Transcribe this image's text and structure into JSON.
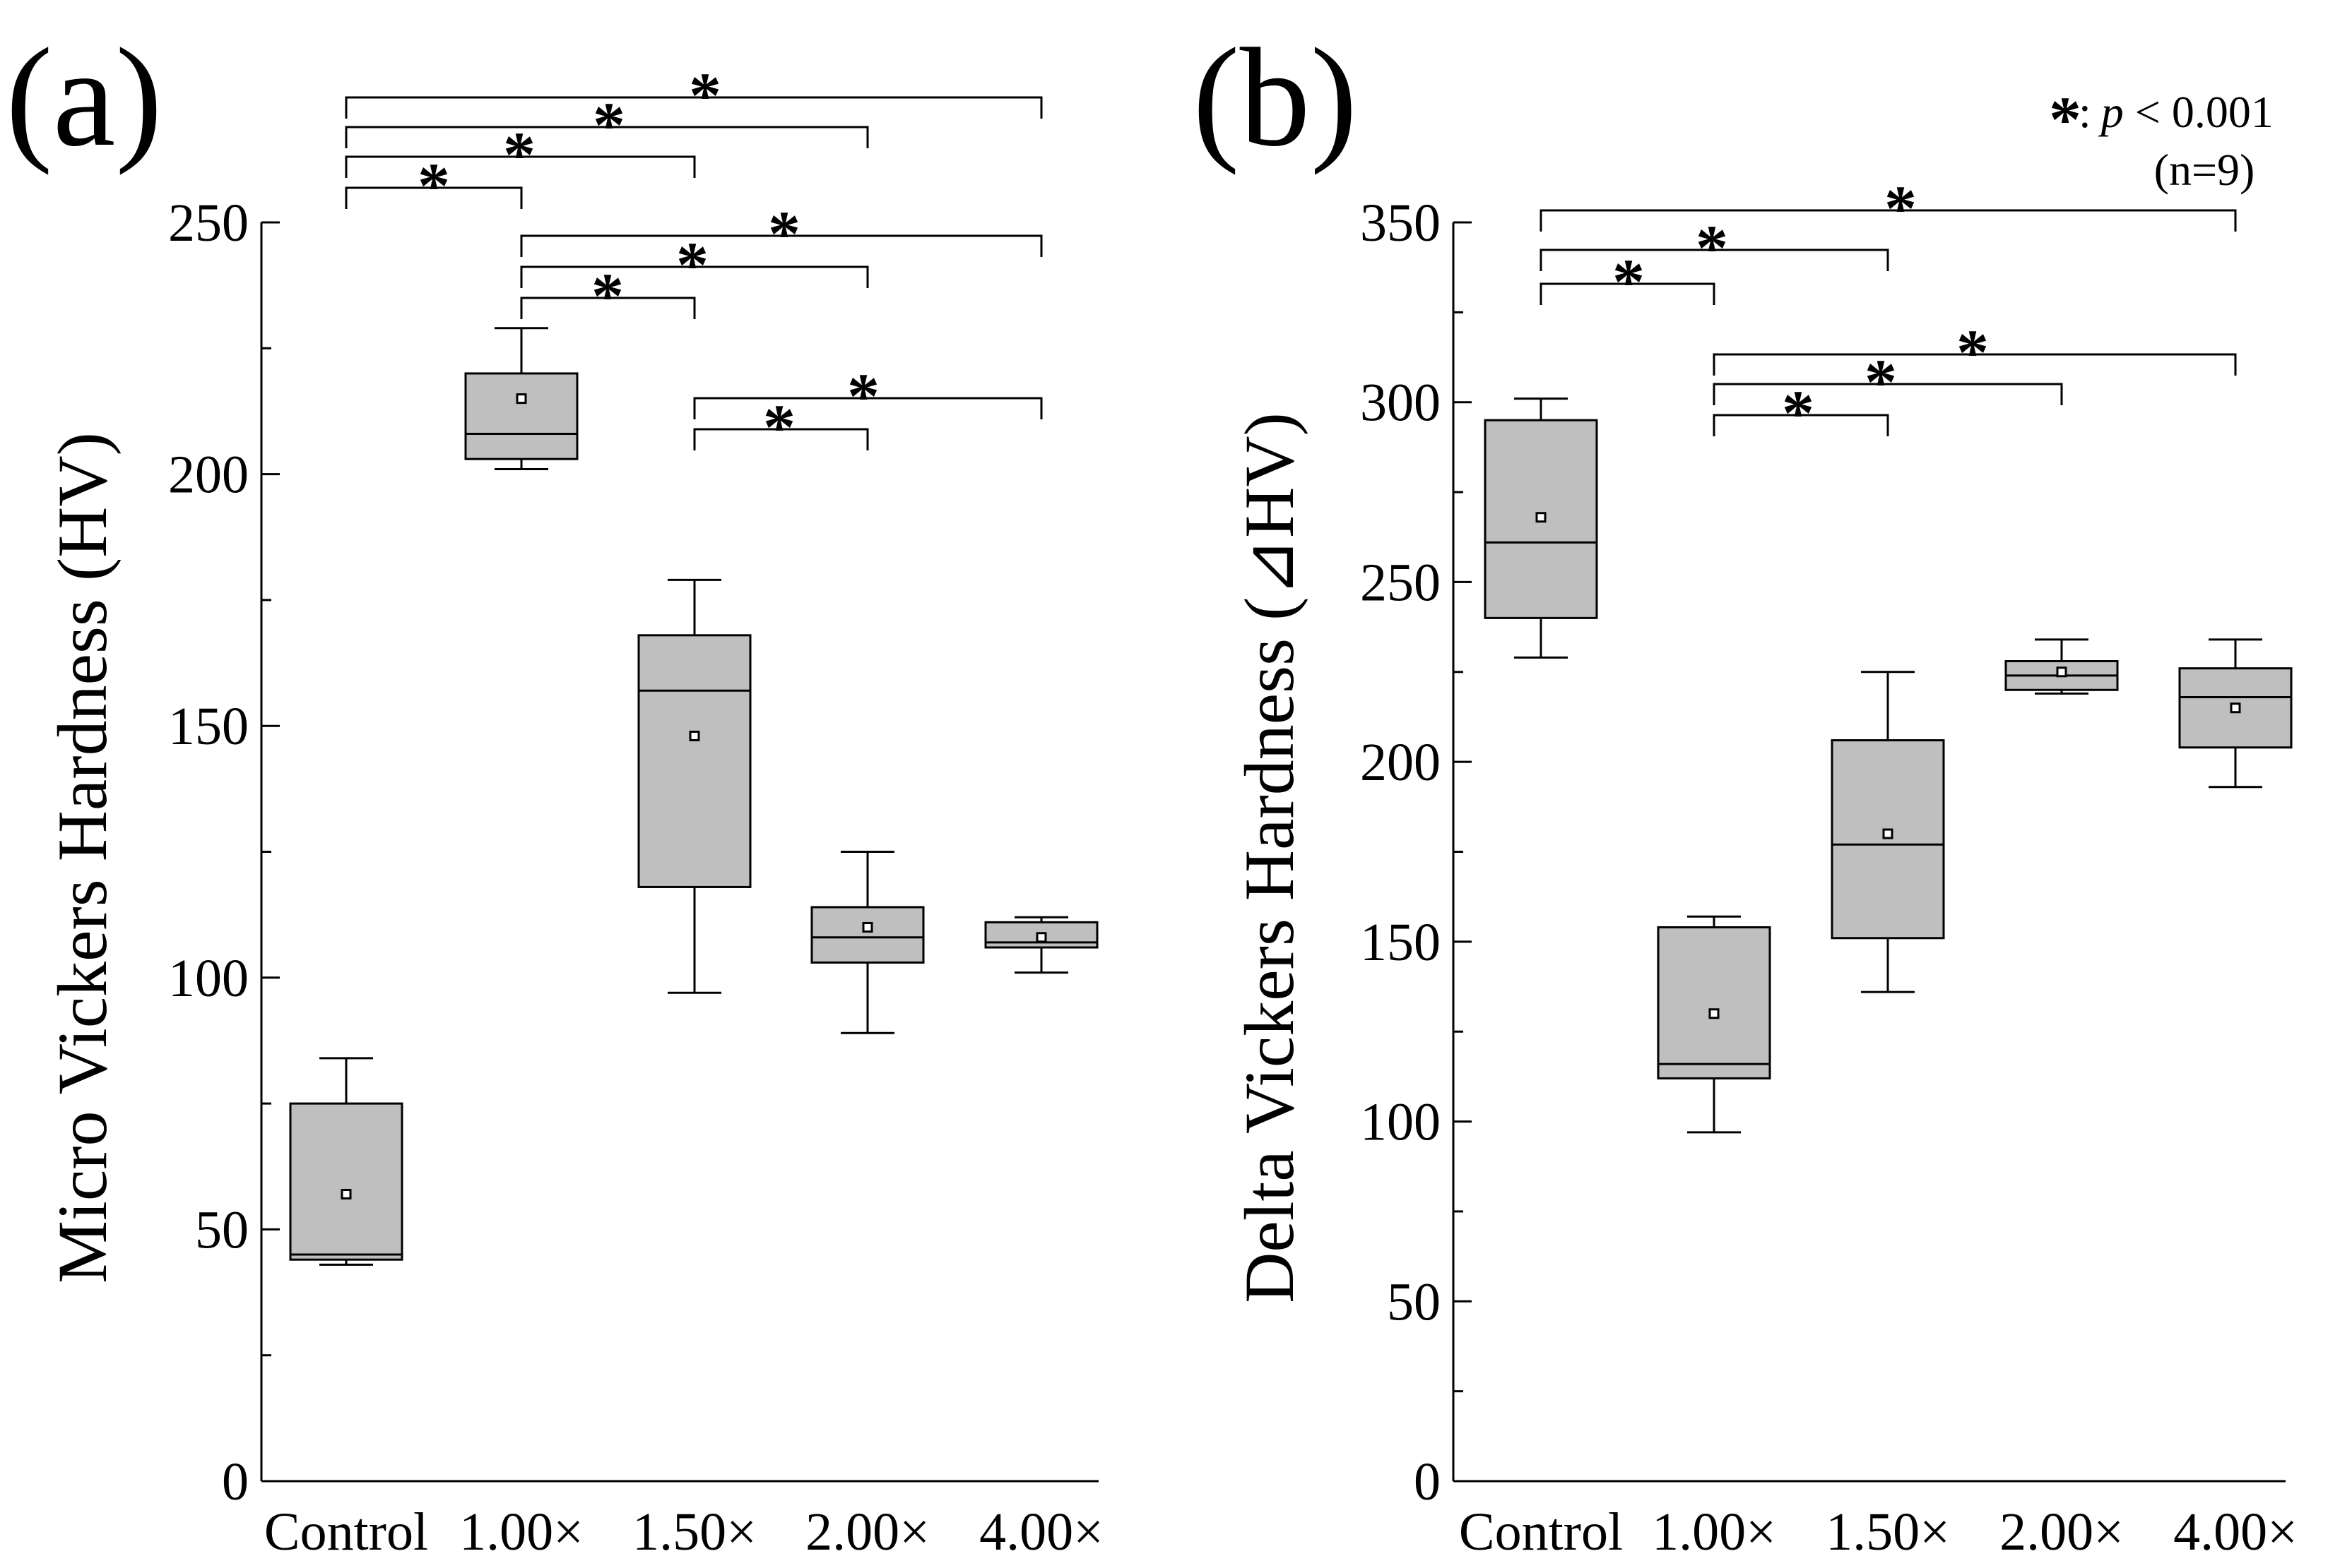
{
  "legend": {
    "star": "*",
    "p_prefix": ":",
    "p_italic": "p",
    "p_rest": " < 0.001",
    "n_text": "(n=9)"
  },
  "colors": {
    "box_fill": "#bfbfbf",
    "line": "#000000"
  },
  "chart_data": [
    {
      "type": "box",
      "panel_label": "(a)",
      "ylabel": "Micro Vickers Hardness (HV)",
      "ylim": [
        0,
        250
      ],
      "yticks": [
        0,
        50,
        100,
        150,
        200,
        250
      ],
      "categories": [
        "Control",
        "1.00×",
        "1.50×",
        "2.00×",
        "4.00×"
      ],
      "boxes": [
        {
          "whisker_low": 43,
          "q1": 44,
          "median": 45,
          "q3": 75,
          "whisker_high": 84,
          "mean": 57
        },
        {
          "whisker_low": 201,
          "q1": 203,
          "median": 208,
          "q3": 220,
          "whisker_high": 229,
          "mean": 215
        },
        {
          "whisker_low": 97,
          "q1": 118,
          "median": 157,
          "q3": 168,
          "whisker_high": 179,
          "mean": 148
        },
        {
          "whisker_low": 89,
          "q1": 103,
          "median": 108,
          "q3": 114,
          "whisker_high": 125,
          "mean": 110
        },
        {
          "whisker_low": 101,
          "q1": 106,
          "median": 107,
          "q3": 111,
          "whisker_high": 112,
          "mean": 108
        }
      ],
      "significance": [
        {
          "from": 0,
          "to": 4,
          "label": "*"
        },
        {
          "from": 0,
          "to": 3,
          "label": "*"
        },
        {
          "from": 0,
          "to": 2,
          "label": "*"
        },
        {
          "from": 0,
          "to": 1,
          "label": "*"
        },
        {
          "from": 1,
          "to": 4,
          "label": "*"
        },
        {
          "from": 1,
          "to": 3,
          "label": "*"
        },
        {
          "from": 1,
          "to": 2,
          "label": "*"
        },
        {
          "from": 2,
          "to": 4,
          "label": "*"
        },
        {
          "from": 2,
          "to": 3,
          "label": "*"
        }
      ]
    },
    {
      "type": "box",
      "panel_label": "(b)",
      "ylabel": "Delta Vickers Hardness (⊿HV)",
      "ylim": [
        0,
        350
      ],
      "yticks": [
        0,
        50,
        100,
        150,
        200,
        250,
        300,
        350
      ],
      "categories": [
        "Control",
        "1.00×",
        "1.50×",
        "2.00×",
        "4.00×"
      ],
      "boxes": [
        {
          "whisker_low": 229,
          "q1": 240,
          "median": 261,
          "q3": 295,
          "whisker_high": 301,
          "mean": 268
        },
        {
          "whisker_low": 97,
          "q1": 112,
          "median": 116,
          "q3": 154,
          "whisker_high": 157,
          "mean": 130
        },
        {
          "whisker_low": 136,
          "q1": 151,
          "median": 177,
          "q3": 206,
          "whisker_high": 225,
          "mean": 180
        },
        {
          "whisker_low": 219,
          "q1": 220,
          "median": 224,
          "q3": 228,
          "whisker_high": 234,
          "mean": 225
        },
        {
          "whisker_low": 193,
          "q1": 204,
          "median": 218,
          "q3": 226,
          "whisker_high": 234,
          "mean": 215
        }
      ],
      "significance": [
        {
          "from": 0,
          "to": 4,
          "label": "*"
        },
        {
          "from": 0,
          "to": 2,
          "label": "*"
        },
        {
          "from": 0,
          "to": 1,
          "label": "*"
        },
        {
          "from": 1,
          "to": 4,
          "label": "*"
        },
        {
          "from": 1,
          "to": 3,
          "label": "*"
        },
        {
          "from": 1,
          "to": 2,
          "label": "*"
        }
      ]
    }
  ]
}
